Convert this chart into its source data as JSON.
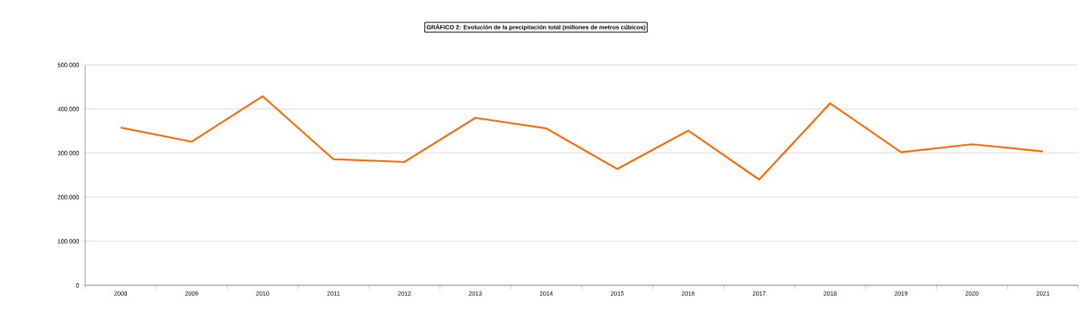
{
  "chart_data": {
    "type": "line",
    "title": "GRÁFICO 2: Evolución de la precipitación total (millones de metros cúbicos)",
    "categories": [
      "2008",
      "2009",
      "2010",
      "2011",
      "2012",
      "2013",
      "2014",
      "2015",
      "2016",
      "2017",
      "2018",
      "2019",
      "2020",
      "2021"
    ],
    "series": [
      {
        "color": "#ff6600",
        "values": [
          358000,
          326000,
          429000,
          286000,
          280000,
          380000,
          356000,
          264000,
          351000,
          240000,
          413000,
          302000,
          320000,
          304000
        ]
      }
    ],
    "ylim": [
      0,
      500000
    ],
    "yticks": [
      {
        "value": 0,
        "label": "0"
      },
      {
        "value": 100000,
        "label": "100.000"
      },
      {
        "value": 200000,
        "label": "200.000"
      },
      {
        "value": 300000,
        "label": "300.000"
      },
      {
        "value": 400000,
        "label": "400.000"
      },
      {
        "value": 500000,
        "label": "500.000"
      }
    ],
    "grid": "y",
    "marker": "none",
    "line_style": "solid"
  }
}
